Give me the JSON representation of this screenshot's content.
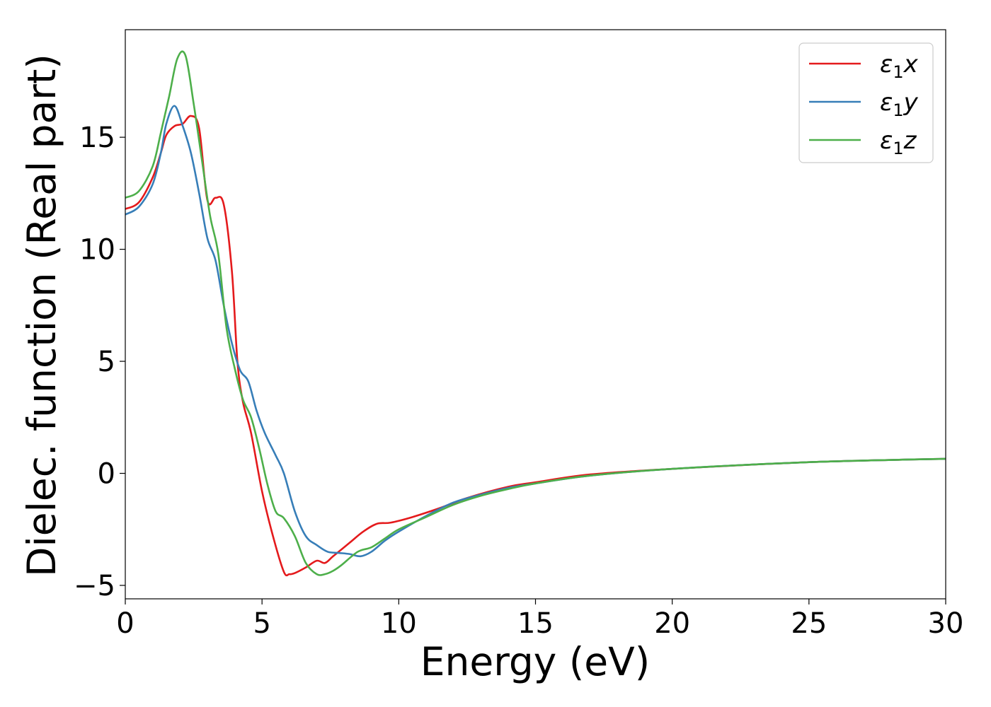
{
  "chart_data": {
    "type": "line",
    "title": "",
    "xlabel": "Energy (eV)",
    "ylabel": "Dielec. function (Real part)",
    "xlim": [
      0,
      30
    ],
    "ylim": [
      -5.6,
      19.8
    ],
    "xticks": [
      0,
      5,
      10,
      15,
      20,
      25,
      30
    ],
    "xtick_labels": [
      "0",
      "5",
      "10",
      "15",
      "20",
      "25",
      "30"
    ],
    "yticks": [
      -5,
      0,
      5,
      10,
      15
    ],
    "ytick_labels": [
      "−5",
      "0",
      "5",
      "10",
      "15"
    ],
    "grid": false,
    "legend_position": "top-right",
    "series": [
      {
        "name": "ε1x",
        "legend_base": "ε",
        "legend_sub": "1",
        "legend_var": "x",
        "color": "#e41a1c",
        "x": [
          0,
          0.5,
          1,
          1.3,
          1.5,
          1.8,
          2.1,
          2.4,
          2.7,
          3.0,
          3.3,
          3.6,
          3.9,
          4.1,
          4.3,
          4.6,
          5.0,
          5.4,
          5.8,
          6.0,
          6.2,
          6.6,
          7.0,
          7.3,
          7.6,
          8.2,
          8.7,
          9.2,
          9.7,
          10.5,
          11.5,
          12.5,
          14,
          15,
          17,
          20,
          25,
          30
        ],
        "y": [
          11.8,
          12.1,
          13.2,
          14.3,
          15.1,
          15.5,
          15.6,
          15.95,
          15.4,
          12.2,
          12.3,
          12.0,
          9.0,
          5.0,
          3.2,
          1.8,
          -0.8,
          -2.8,
          -4.4,
          -4.5,
          -4.45,
          -4.2,
          -3.9,
          -4.0,
          -3.7,
          -3.1,
          -2.6,
          -2.25,
          -2.2,
          -1.95,
          -1.55,
          -1.1,
          -0.6,
          -0.4,
          -0.05,
          0.2,
          0.5,
          0.65
        ]
      },
      {
        "name": "ε1y",
        "legend_base": "ε",
        "legend_sub": "1",
        "legend_var": "y",
        "color": "#377eb8",
        "x": [
          0,
          0.5,
          1,
          1.3,
          1.5,
          1.8,
          2.1,
          2.4,
          2.7,
          3.0,
          3.3,
          3.6,
          3.9,
          4.2,
          4.5,
          4.8,
          5.1,
          5.5,
          5.8,
          6.2,
          6.6,
          7.0,
          7.4,
          7.8,
          8.2,
          8.6,
          9.0,
          9.5,
          10,
          11,
          12,
          13,
          14,
          15,
          17,
          20,
          25,
          30
        ],
        "y": [
          11.55,
          11.9,
          12.9,
          14.3,
          15.6,
          16.4,
          15.5,
          14.3,
          12.5,
          10.5,
          9.5,
          7.5,
          5.8,
          4.6,
          4.1,
          2.8,
          1.8,
          0.8,
          0,
          -1.7,
          -2.8,
          -3.2,
          -3.5,
          -3.55,
          -3.6,
          -3.7,
          -3.5,
          -3.0,
          -2.6,
          -1.9,
          -1.3,
          -0.95,
          -0.65,
          -0.45,
          -0.1,
          0.2,
          0.5,
          0.65
        ]
      },
      {
        "name": "ε1z",
        "legend_base": "ε",
        "legend_sub": "1",
        "legend_var": "z",
        "color": "#4daf4a",
        "x": [
          0,
          0.5,
          1,
          1.3,
          1.6,
          1.9,
          2.2,
          2.5,
          2.8,
          3.1,
          3.4,
          3.7,
          4.0,
          4.3,
          4.6,
          4.9,
          5.2,
          5.5,
          5.8,
          6.2,
          6.6,
          7.0,
          7.3,
          7.6,
          7.9,
          8.5,
          9.0,
          9.5,
          10,
          11,
          12,
          13,
          14,
          15,
          17,
          20,
          25,
          30
        ],
        "y": [
          12.3,
          12.6,
          13.7,
          15.2,
          16.8,
          18.5,
          18.65,
          16.5,
          14.0,
          11.5,
          9.8,
          6.5,
          4.7,
          3.3,
          2.5,
          1.1,
          -0.5,
          -1.7,
          -2.0,
          -2.8,
          -4.0,
          -4.5,
          -4.5,
          -4.35,
          -4.1,
          -3.5,
          -3.3,
          -2.9,
          -2.5,
          -1.95,
          -1.4,
          -1.0,
          -0.7,
          -0.45,
          -0.1,
          0.2,
          0.5,
          0.65
        ]
      }
    ]
  }
}
